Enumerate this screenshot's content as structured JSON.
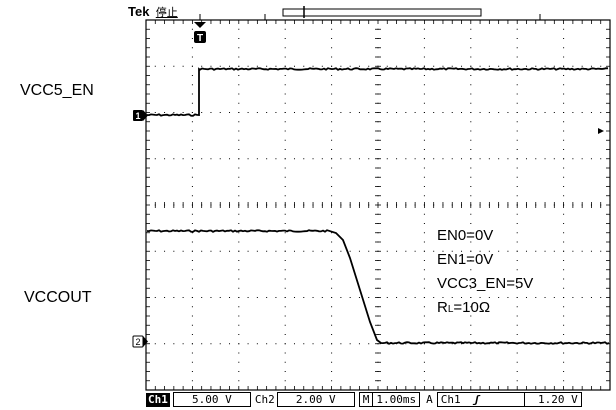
{
  "header": {
    "brand": "Tek",
    "status": "停止"
  },
  "channels": {
    "ch1_label": "VCC5_EN",
    "ch2_label": "VCCOUT",
    "ch1_marker": "1",
    "ch2_marker": "2",
    "trigger_marker": "T"
  },
  "notes": [
    "EN0=0V",
    "EN1=0V",
    "VCC3_EN=5V"
  ],
  "rl_label": {
    "main": "R",
    "sub": "L",
    "value": "=10Ω"
  },
  "footer": {
    "ch1": "Ch1",
    "ch1_scale": "5.00 V",
    "ch2": "Ch2",
    "ch2_scale": "2.00 V",
    "m": "M",
    "timebase": "1.00ms",
    "a": "A",
    "trigger_source": "Ch1",
    "trigger_slope": "ʃ",
    "trigger_level": "1.20 V"
  },
  "colors": {
    "trace": "#000000",
    "grid": "#000000",
    "background": "#ffffff"
  }
}
